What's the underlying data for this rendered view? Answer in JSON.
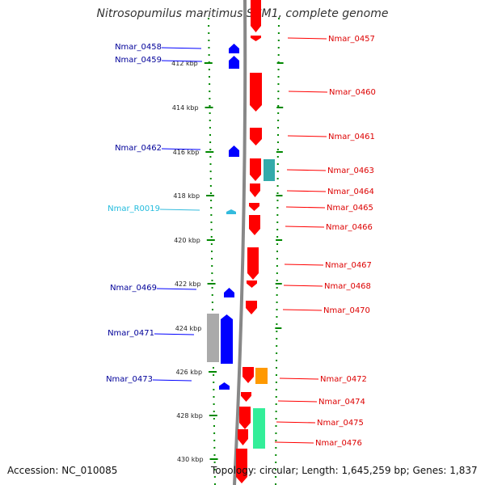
{
  "title": "Nitrosopumilus maritimus SCM1, complete genome",
  "accession_text": "Accession: NC_010085",
  "topology_text": "Topology: circular; Length: 1,645,259 bp; Genes: 1,837",
  "colors": {
    "forward_cds": "#ff0000",
    "reverse_cds": "#0000ff",
    "rna": "#33bbdd",
    "forward_label": "#dd0000",
    "reverse_label": "#000099",
    "rna_label": "#22bbdd",
    "ruler": "#008800",
    "backbone": "#888888",
    "feature_teal": "#33aaaa",
    "feature_gray": "#aaaaaa",
    "feature_orange": "#ff9900",
    "feature_green": "#33ee99"
  },
  "ruler_ticks": [
    "412 kbp",
    "414 kbp",
    "416 kbp",
    "418 kbp",
    "420 kbp",
    "422 kbp",
    "424 kbp",
    "426 kbp",
    "428 kbp",
    "430 kbp"
  ],
  "forward_genes": [
    "Nmar_0457",
    "Nmar_0460",
    "Nmar_0461",
    "Nmar_0463",
    "Nmar_0464",
    "Nmar_0465",
    "Nmar_0466",
    "Nmar_0467",
    "Nmar_0468",
    "Nmar_0470",
    "Nmar_0472",
    "Nmar_0474",
    "Nmar_0475",
    "Nmar_0476"
  ],
  "reverse_genes": [
    "Nmar_0458",
    "Nmar_0459",
    "Nmar_0462",
    "Nmar_R0019",
    "Nmar_0469",
    "Nmar_0471",
    "Nmar_0473"
  ]
}
